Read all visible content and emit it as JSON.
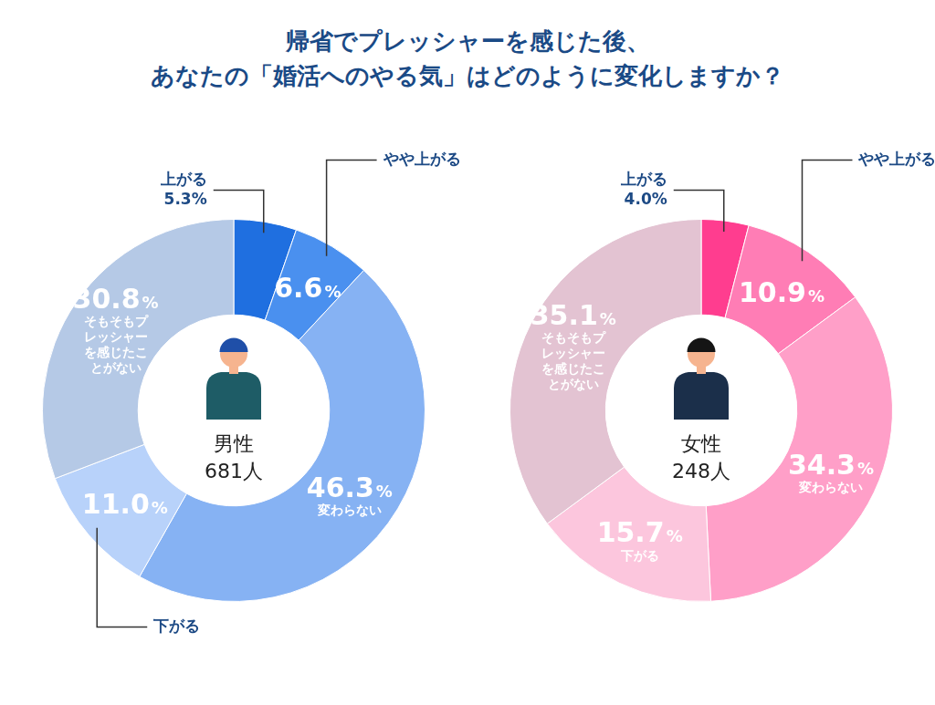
{
  "title": "帰省でプレッシャーを感じた後、\nあなたの「婚活へのやる気」はどのように変化しますか？",
  "chart_data": [
    {
      "type": "doughnut",
      "title": "男性",
      "subtitle": "681人",
      "categories": [
        "上がる",
        "やや上がる",
        "変わらない",
        "下がる",
        "そもそもプレッシャーを感じたことがない"
      ],
      "values": [
        5.3,
        6.6,
        46.3,
        11.0,
        30.8
      ],
      "value_labels": [
        "5.3%",
        "6.6%",
        "46.3%",
        "11.0%",
        "30.8%"
      ],
      "colors": [
        "#1f6fe0",
        "#4a90ef",
        "#86b2f3",
        "#b8d2fa",
        "#b5c9e6"
      ],
      "data_labels": true
    },
    {
      "type": "doughnut",
      "title": "女性",
      "subtitle": "248人",
      "categories": [
        "上がる",
        "やや上がる",
        "変わらない",
        "下がる",
        "そもそもプレッシャーを感じたことがない"
      ],
      "values": [
        4.0,
        10.9,
        34.3,
        15.7,
        35.1
      ],
      "value_labels": [
        "4.0%",
        "10.9%",
        "34.3%",
        "15.7%",
        "35.1%"
      ],
      "colors": [
        "#ff3d8f",
        "#ff7db5",
        "#ff9fc8",
        "#fcc6dd",
        "#e3c3d2"
      ],
      "data_labels": true
    }
  ]
}
